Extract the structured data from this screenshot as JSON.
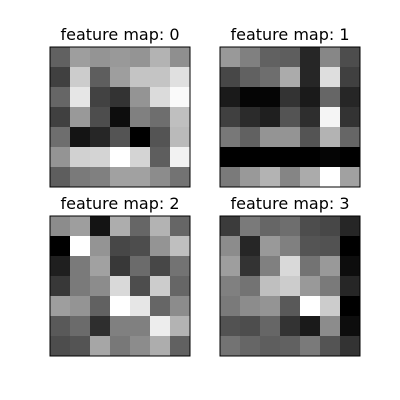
{
  "figure": {
    "background": "#ffffff",
    "colormap": "gray",
    "value_range": [
      0,
      1
    ]
  },
  "chart_data": [
    {
      "type": "heatmap",
      "title": "feature map: 0",
      "rows": 7,
      "cols": 7,
      "values": [
        [
          0.38,
          0.62,
          0.58,
          0.6,
          0.58,
          0.7,
          0.56
        ],
        [
          0.25,
          0.8,
          0.37,
          0.62,
          0.77,
          0.77,
          0.88
        ],
        [
          0.4,
          0.9,
          0.26,
          0.2,
          0.58,
          0.86,
          0.98
        ],
        [
          0.25,
          0.6,
          0.3,
          0.05,
          0.5,
          0.43,
          0.75
        ],
        [
          0.43,
          0.08,
          0.15,
          0.33,
          0.0,
          0.33,
          0.73
        ],
        [
          0.58,
          0.82,
          0.83,
          1.0,
          0.83,
          0.37,
          0.95
        ],
        [
          0.37,
          0.48,
          0.5,
          0.63,
          0.63,
          0.55,
          0.45
        ]
      ]
    },
    {
      "type": "heatmap",
      "title": "feature map: 1",
      "rows": 7,
      "cols": 7,
      "values": [
        [
          0.6,
          0.5,
          0.38,
          0.37,
          0.15,
          0.53,
          0.3
        ],
        [
          0.28,
          0.38,
          0.43,
          0.67,
          0.15,
          0.87,
          0.25
        ],
        [
          0.1,
          0.02,
          0.02,
          0.2,
          0.1,
          0.4,
          0.15
        ],
        [
          0.25,
          0.17,
          0.12,
          0.33,
          0.18,
          0.96,
          0.2
        ],
        [
          0.47,
          0.38,
          0.58,
          0.58,
          0.33,
          0.7,
          0.4
        ],
        [
          0.0,
          0.0,
          0.0,
          0.0,
          0.0,
          0.02,
          0.0
        ],
        [
          0.48,
          0.6,
          0.7,
          0.52,
          0.67,
          1.0,
          0.63
        ]
      ]
    },
    {
      "type": "heatmap",
      "title": "feature map: 2",
      "rows": 7,
      "cols": 7,
      "values": [
        [
          0.55,
          0.62,
          0.08,
          0.68,
          0.4,
          0.7,
          0.4
        ],
        [
          0.0,
          1.0,
          0.58,
          0.28,
          0.3,
          0.58,
          0.75
        ],
        [
          0.12,
          0.48,
          0.63,
          0.22,
          0.42,
          0.28,
          0.45
        ],
        [
          0.22,
          0.48,
          0.55,
          0.85,
          0.3,
          0.8,
          0.4
        ],
        [
          0.62,
          0.58,
          0.38,
          1.0,
          0.9,
          0.4,
          0.55
        ],
        [
          0.35,
          0.42,
          0.18,
          0.5,
          0.5,
          0.93,
          0.7
        ],
        [
          0.3,
          0.33,
          0.65,
          0.47,
          0.55,
          0.68,
          0.38
        ]
      ]
    },
    {
      "type": "heatmap",
      "title": "feature map: 3",
      "rows": 7,
      "cols": 7,
      "values": [
        [
          0.23,
          0.48,
          0.4,
          0.43,
          0.3,
          0.28,
          0.15
        ],
        [
          0.55,
          0.15,
          0.6,
          0.5,
          0.33,
          0.32,
          0.0
        ],
        [
          0.62,
          0.2,
          0.5,
          0.85,
          0.45,
          0.6,
          0.05
        ],
        [
          0.5,
          0.45,
          0.75,
          0.8,
          0.6,
          0.48,
          0.15
        ],
        [
          0.48,
          0.55,
          0.58,
          0.35,
          1.0,
          0.8,
          0.0
        ],
        [
          0.32,
          0.3,
          0.4,
          0.2,
          0.1,
          0.55,
          0.05
        ],
        [
          0.45,
          0.4,
          0.37,
          0.38,
          0.48,
          0.33,
          0.2
        ]
      ]
    }
  ]
}
